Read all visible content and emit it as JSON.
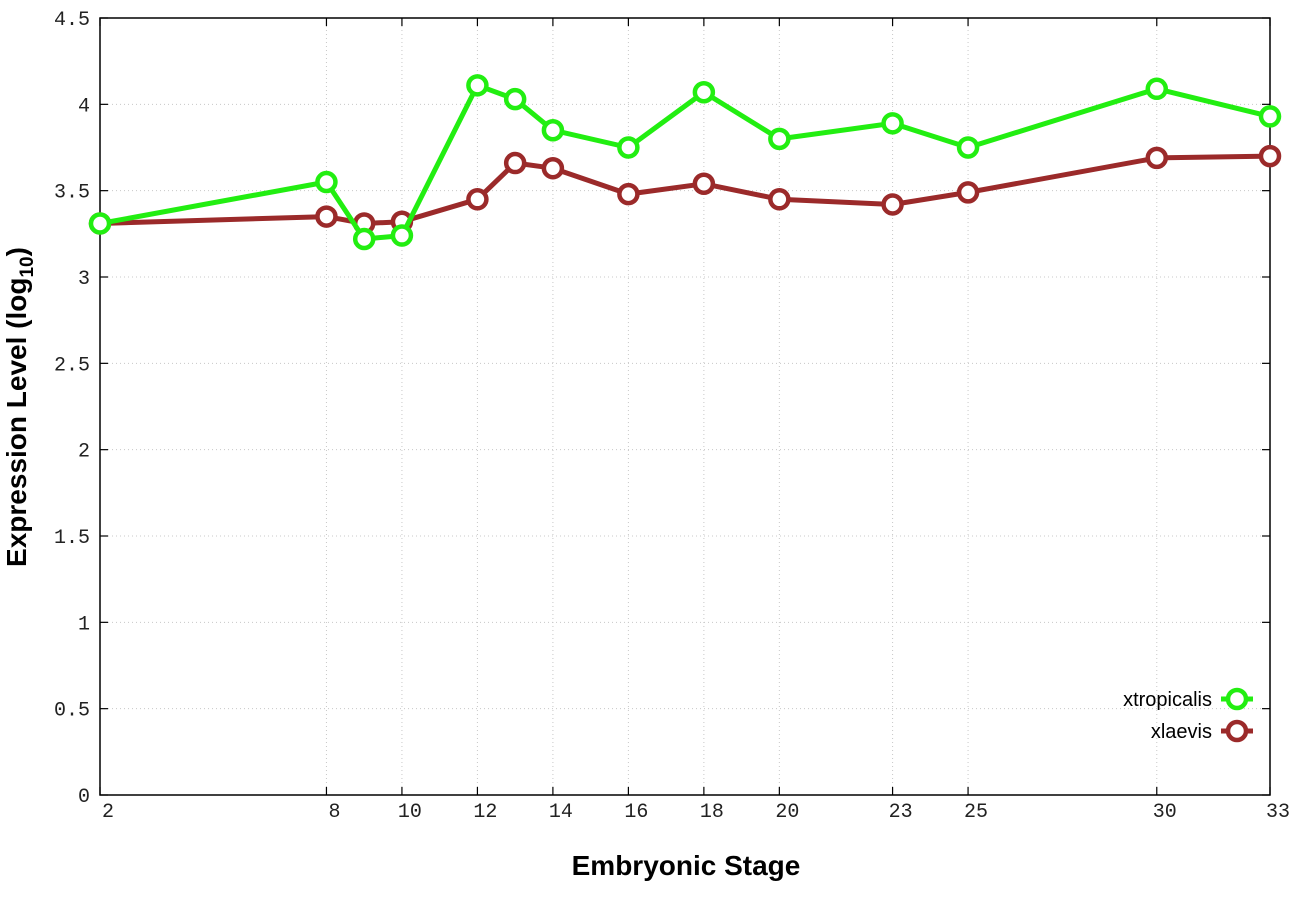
{
  "chart_data": {
    "type": "line",
    "title": "",
    "xlabel": "Embryonic Stage",
    "ylabel": "Expression Level (log",
    "ylabel_sub": "10",
    "ylabel_close": ")",
    "x": [
      2,
      8,
      9,
      10,
      12,
      13,
      14,
      16,
      18,
      20,
      23,
      25,
      30,
      33
    ],
    "x_ticks": [
      2,
      8,
      10,
      12,
      14,
      16,
      18,
      20,
      23,
      25,
      30,
      33
    ],
    "x_tick_labels": [
      "2",
      "8",
      "10",
      "12",
      "14",
      "16",
      "18",
      "20",
      "23",
      "25",
      "30",
      "33"
    ],
    "xlim": [
      2,
      33
    ],
    "ylim": [
      0,
      4.5
    ],
    "y_ticks": [
      0,
      0.5,
      1,
      1.5,
      2,
      2.5,
      3,
      3.5,
      4,
      4.5
    ],
    "y_tick_labels": [
      "0",
      "0.5",
      "1",
      "1.5",
      "2",
      "2.5",
      "3",
      "3.5",
      "4",
      "4.5"
    ],
    "grid": true,
    "legend_position": "bottom-right",
    "series": [
      {
        "name": "xtropicalis",
        "color": "#22ee11",
        "values": [
          3.31,
          3.55,
          3.22,
          3.24,
          4.11,
          4.03,
          3.85,
          3.75,
          4.07,
          3.8,
          3.89,
          3.75,
          4.09,
          3.93
        ]
      },
      {
        "name": "xlaevis",
        "color": "#9b2a2a",
        "values": [
          3.31,
          3.35,
          3.31,
          3.32,
          3.45,
          3.66,
          3.63,
          3.48,
          3.54,
          3.45,
          3.42,
          3.49,
          3.69,
          3.7
        ]
      }
    ]
  }
}
